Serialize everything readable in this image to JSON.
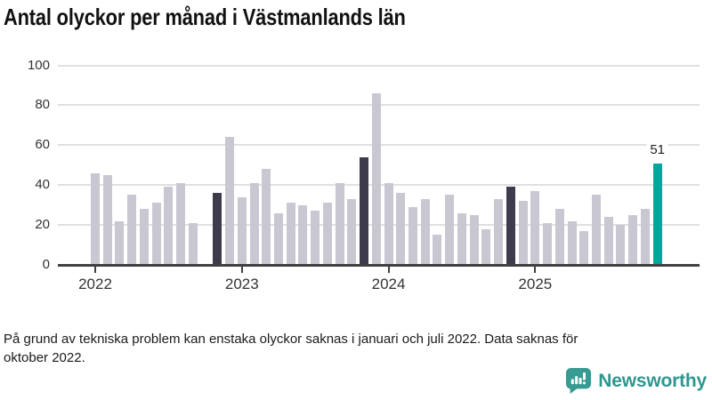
{
  "title": "Antal olyckor per månad i Västmanlands län",
  "footnote": "På grund av tekniska problem kan enstaka olyckor saknas i januari och juli 2022. Data saknas för\noktober 2022.",
  "branding": {
    "logo_text": "Newsworthy",
    "logo_icon": "newsworthy-speech-bubble-bar-chart-icon",
    "logo_color": "#379a93"
  },
  "colors": {
    "bar_default": "#c9c7d1",
    "bar_dark": "#3e3b4c",
    "bar_highlight": "#06a49b",
    "gridline": "#e0e0e0",
    "axis": "#404040",
    "text": "#333333"
  },
  "chart_data": {
    "type": "bar",
    "title": "Antal olyckor per månad i Västmanlands län",
    "xlabel": "",
    "ylabel": "",
    "ylim": [
      0,
      100
    ],
    "yticks": [
      0,
      20,
      40,
      60,
      80,
      100
    ],
    "grid": "horizontal",
    "x_tick_labels": [
      "2022",
      "2023",
      "2024",
      "2025"
    ],
    "legend": "none",
    "notes": "dark role = November of prior years; highlight role = latest month; 2022-10 value missing",
    "points": [
      {
        "month": "2022-01",
        "value": 46
      },
      {
        "month": "2022-02",
        "value": 45
      },
      {
        "month": "2022-03",
        "value": 22
      },
      {
        "month": "2022-04",
        "value": 35
      },
      {
        "month": "2022-05",
        "value": 28
      },
      {
        "month": "2022-06",
        "value": 31
      },
      {
        "month": "2022-07",
        "value": 39
      },
      {
        "month": "2022-08",
        "value": 41
      },
      {
        "month": "2022-09",
        "value": 21
      },
      {
        "month": "2022-10",
        "value": null
      },
      {
        "month": "2022-11",
        "value": 36,
        "role": "dark"
      },
      {
        "month": "2022-12",
        "value": 64
      },
      {
        "month": "2023-01",
        "value": 34
      },
      {
        "month": "2023-02",
        "value": 41
      },
      {
        "month": "2023-03",
        "value": 48
      },
      {
        "month": "2023-04",
        "value": 26
      },
      {
        "month": "2023-05",
        "value": 31
      },
      {
        "month": "2023-06",
        "value": 30
      },
      {
        "month": "2023-07",
        "value": 27
      },
      {
        "month": "2023-08",
        "value": 31
      },
      {
        "month": "2023-09",
        "value": 41
      },
      {
        "month": "2023-10",
        "value": 33
      },
      {
        "month": "2023-11",
        "value": 54,
        "role": "dark"
      },
      {
        "month": "2023-12",
        "value": 86
      },
      {
        "month": "2024-01",
        "value": 41
      },
      {
        "month": "2024-02",
        "value": 36
      },
      {
        "month": "2024-03",
        "value": 29
      },
      {
        "month": "2024-04",
        "value": 33
      },
      {
        "month": "2024-05",
        "value": 15
      },
      {
        "month": "2024-06",
        "value": 35
      },
      {
        "month": "2024-07",
        "value": 26
      },
      {
        "month": "2024-08",
        "value": 25
      },
      {
        "month": "2024-09",
        "value": 18
      },
      {
        "month": "2024-10",
        "value": 33
      },
      {
        "month": "2024-11",
        "value": 39,
        "role": "dark"
      },
      {
        "month": "2024-12",
        "value": 32
      },
      {
        "month": "2025-01",
        "value": 37
      },
      {
        "month": "2025-02",
        "value": 21
      },
      {
        "month": "2025-03",
        "value": 28
      },
      {
        "month": "2025-04",
        "value": 22
      },
      {
        "month": "2025-05",
        "value": 17
      },
      {
        "month": "2025-06",
        "value": 35
      },
      {
        "month": "2025-07",
        "value": 24
      },
      {
        "month": "2025-08",
        "value": 20
      },
      {
        "month": "2025-09",
        "value": 25
      },
      {
        "month": "2025-10",
        "value": 28
      },
      {
        "month": "2025-11",
        "value": 51,
        "role": "highlight",
        "label": "51"
      }
    ]
  }
}
